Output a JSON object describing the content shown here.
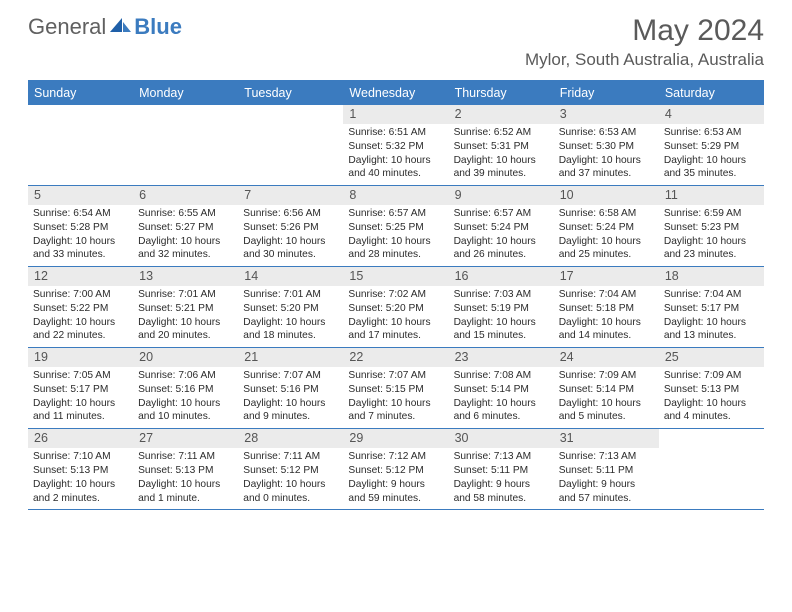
{
  "brand": {
    "part1": "General",
    "part2": "Blue"
  },
  "title": "May 2024",
  "location": "Mylor, South Australia, Australia",
  "colors": {
    "accent": "#3b7bbf",
    "dow_bg": "#3b7bbf",
    "dow_text": "#ffffff",
    "daynum_bg": "#ebebeb",
    "text": "#2b2b2b",
    "title_color": "#5a5a5a"
  },
  "dow": [
    "Sunday",
    "Monday",
    "Tuesday",
    "Wednesday",
    "Thursday",
    "Friday",
    "Saturday"
  ],
  "weeks": [
    [
      {
        "n": "",
        "sr": "",
        "ss": "",
        "dl": ""
      },
      {
        "n": "",
        "sr": "",
        "ss": "",
        "dl": ""
      },
      {
        "n": "",
        "sr": "",
        "ss": "",
        "dl": ""
      },
      {
        "n": "1",
        "sr": "6:51 AM",
        "ss": "5:32 PM",
        "dl": "10 hours and 40 minutes."
      },
      {
        "n": "2",
        "sr": "6:52 AM",
        "ss": "5:31 PM",
        "dl": "10 hours and 39 minutes."
      },
      {
        "n": "3",
        "sr": "6:53 AM",
        "ss": "5:30 PM",
        "dl": "10 hours and 37 minutes."
      },
      {
        "n": "4",
        "sr": "6:53 AM",
        "ss": "5:29 PM",
        "dl": "10 hours and 35 minutes."
      }
    ],
    [
      {
        "n": "5",
        "sr": "6:54 AM",
        "ss": "5:28 PM",
        "dl": "10 hours and 33 minutes."
      },
      {
        "n": "6",
        "sr": "6:55 AM",
        "ss": "5:27 PM",
        "dl": "10 hours and 32 minutes."
      },
      {
        "n": "7",
        "sr": "6:56 AM",
        "ss": "5:26 PM",
        "dl": "10 hours and 30 minutes."
      },
      {
        "n": "8",
        "sr": "6:57 AM",
        "ss": "5:25 PM",
        "dl": "10 hours and 28 minutes."
      },
      {
        "n": "9",
        "sr": "6:57 AM",
        "ss": "5:24 PM",
        "dl": "10 hours and 26 minutes."
      },
      {
        "n": "10",
        "sr": "6:58 AM",
        "ss": "5:24 PM",
        "dl": "10 hours and 25 minutes."
      },
      {
        "n": "11",
        "sr": "6:59 AM",
        "ss": "5:23 PM",
        "dl": "10 hours and 23 minutes."
      }
    ],
    [
      {
        "n": "12",
        "sr": "7:00 AM",
        "ss": "5:22 PM",
        "dl": "10 hours and 22 minutes."
      },
      {
        "n": "13",
        "sr": "7:01 AM",
        "ss": "5:21 PM",
        "dl": "10 hours and 20 minutes."
      },
      {
        "n": "14",
        "sr": "7:01 AM",
        "ss": "5:20 PM",
        "dl": "10 hours and 18 minutes."
      },
      {
        "n": "15",
        "sr": "7:02 AM",
        "ss": "5:20 PM",
        "dl": "10 hours and 17 minutes."
      },
      {
        "n": "16",
        "sr": "7:03 AM",
        "ss": "5:19 PM",
        "dl": "10 hours and 15 minutes."
      },
      {
        "n": "17",
        "sr": "7:04 AM",
        "ss": "5:18 PM",
        "dl": "10 hours and 14 minutes."
      },
      {
        "n": "18",
        "sr": "7:04 AM",
        "ss": "5:17 PM",
        "dl": "10 hours and 13 minutes."
      }
    ],
    [
      {
        "n": "19",
        "sr": "7:05 AM",
        "ss": "5:17 PM",
        "dl": "10 hours and 11 minutes."
      },
      {
        "n": "20",
        "sr": "7:06 AM",
        "ss": "5:16 PM",
        "dl": "10 hours and 10 minutes."
      },
      {
        "n": "21",
        "sr": "7:07 AM",
        "ss": "5:16 PM",
        "dl": "10 hours and 9 minutes."
      },
      {
        "n": "22",
        "sr": "7:07 AM",
        "ss": "5:15 PM",
        "dl": "10 hours and 7 minutes."
      },
      {
        "n": "23",
        "sr": "7:08 AM",
        "ss": "5:14 PM",
        "dl": "10 hours and 6 minutes."
      },
      {
        "n": "24",
        "sr": "7:09 AM",
        "ss": "5:14 PM",
        "dl": "10 hours and 5 minutes."
      },
      {
        "n": "25",
        "sr": "7:09 AM",
        "ss": "5:13 PM",
        "dl": "10 hours and 4 minutes."
      }
    ],
    [
      {
        "n": "26",
        "sr": "7:10 AM",
        "ss": "5:13 PM",
        "dl": "10 hours and 2 minutes."
      },
      {
        "n": "27",
        "sr": "7:11 AM",
        "ss": "5:13 PM",
        "dl": "10 hours and 1 minute."
      },
      {
        "n": "28",
        "sr": "7:11 AM",
        "ss": "5:12 PM",
        "dl": "10 hours and 0 minutes."
      },
      {
        "n": "29",
        "sr": "7:12 AM",
        "ss": "5:12 PM",
        "dl": "9 hours and 59 minutes."
      },
      {
        "n": "30",
        "sr": "7:13 AM",
        "ss": "5:11 PM",
        "dl": "9 hours and 58 minutes."
      },
      {
        "n": "31",
        "sr": "7:13 AM",
        "ss": "5:11 PM",
        "dl": "9 hours and 57 minutes."
      },
      {
        "n": "",
        "sr": "",
        "ss": "",
        "dl": ""
      }
    ]
  ],
  "labels": {
    "sunrise": "Sunrise:",
    "sunset": "Sunset:",
    "daylight": "Daylight:"
  }
}
